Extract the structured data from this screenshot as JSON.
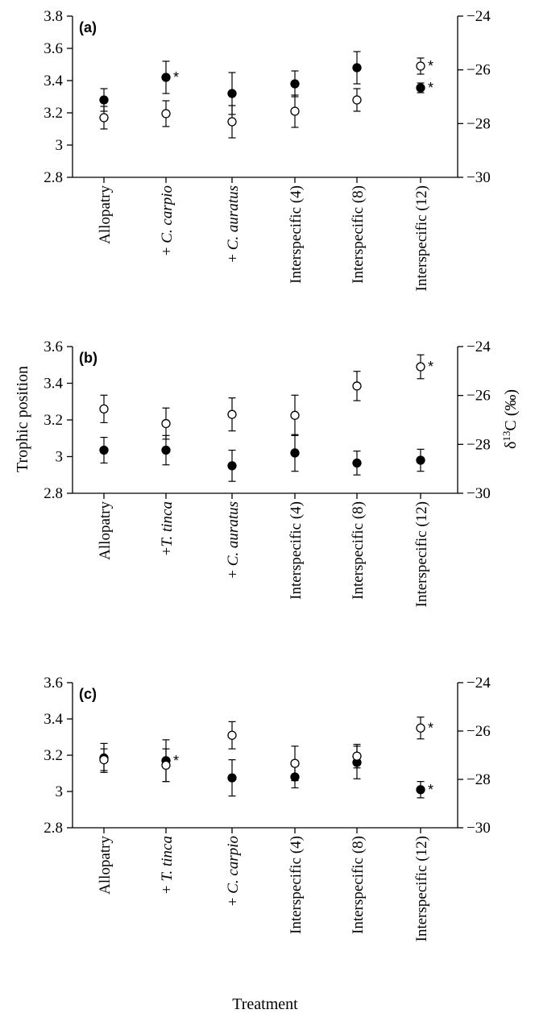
{
  "chart_data": [
    {
      "type": "scatter",
      "panel_label": "(a)",
      "categories": [
        "Allopatry",
        "+ C. carpio",
        "+ C. auratus",
        "Interspecific (4)",
        "Interspecific (8)",
        "Interspecific (12)"
      ],
      "category_parts": [
        [
          {
            "t": "Allopatry",
            "i": false
          }
        ],
        [
          {
            "t": "+ ",
            "i": false
          },
          {
            "t": "C. carpio",
            "i": true
          }
        ],
        [
          {
            "t": "+ ",
            "i": false
          },
          {
            "t": "C. auratus",
            "i": true
          }
        ],
        [
          {
            "t": "Interspecific (4)",
            "i": false
          }
        ],
        [
          {
            "t": "Interspecific (8)",
            "i": false
          }
        ],
        [
          {
            "t": "Interspecific (12)",
            "i": false
          }
        ]
      ],
      "ylim": [
        2.8,
        3.8
      ],
      "yticks": [
        2.8,
        3.0,
        3.2,
        3.4,
        3.6,
        3.8
      ],
      "ytick_labels": [
        "2.8",
        "3",
        "3.2",
        "3.4",
        "3.6",
        "3.8"
      ],
      "y2lim": [
        -30,
        -24
      ],
      "y2ticks": [
        -30,
        -28,
        -26,
        -24
      ],
      "y2tick_labels": [
        "−30",
        "−28",
        "−26",
        "−24"
      ],
      "filled": {
        "values": [
          3.28,
          3.42,
          3.32,
          3.38,
          3.48,
          3.355
        ],
        "err": [
          0.07,
          0.1,
          0.13,
          0.08,
          0.1,
          0.03
        ],
        "stars": [
          false,
          true,
          false,
          false,
          false,
          true
        ]
      },
      "open": {
        "values": [
          3.17,
          3.195,
          3.145,
          3.21,
          3.28,
          3.49
        ],
        "err": [
          0.07,
          0.08,
          0.1,
          0.1,
          0.07,
          0.05
        ],
        "stars": [
          false,
          false,
          false,
          false,
          false,
          true
        ]
      }
    },
    {
      "type": "scatter",
      "panel_label": "(b)",
      "categories": [
        "Allopatry",
        "+T. tinca",
        "+ C. auratus",
        "Interspecific (4)",
        "Interspecific (8)",
        "Interspecific (12)"
      ],
      "category_parts": [
        [
          {
            "t": "Allopatry",
            "i": false
          }
        ],
        [
          {
            "t": "+",
            "i": false
          },
          {
            "t": "T. tinca",
            "i": true
          }
        ],
        [
          {
            "t": "+ ",
            "i": false
          },
          {
            "t": "C. auratus",
            "i": true
          }
        ],
        [
          {
            "t": "Interspecific (4)",
            "i": false
          }
        ],
        [
          {
            "t": "Interspecific (8)",
            "i": false
          }
        ],
        [
          {
            "t": "Interspecific (12)",
            "i": false
          }
        ]
      ],
      "ylim": [
        2.8,
        3.6
      ],
      "yticks": [
        2.8,
        3.0,
        3.2,
        3.4,
        3.6
      ],
      "ytick_labels": [
        "2.8",
        "3",
        "3.2",
        "3.4",
        "3.6"
      ],
      "y2lim": [
        -30,
        -24
      ],
      "y2ticks": [
        -30,
        -28,
        -26,
        -24
      ],
      "y2tick_labels": [
        "−30",
        "−28",
        "−26",
        "−24"
      ],
      "filled": {
        "values": [
          3.035,
          3.035,
          2.95,
          3.02,
          2.965,
          2.98
        ],
        "err": [
          0.07,
          0.08,
          0.085,
          0.1,
          0.065,
          0.06
        ],
        "stars": [
          false,
          false,
          false,
          false,
          false,
          false
        ]
      },
      "open": {
        "values": [
          3.26,
          3.18,
          3.23,
          3.225,
          3.385,
          3.49
        ],
        "err": [
          0.075,
          0.085,
          0.09,
          0.11,
          0.08,
          0.065
        ],
        "stars": [
          false,
          false,
          false,
          false,
          false,
          true
        ]
      }
    },
    {
      "type": "scatter",
      "panel_label": "(c)",
      "categories": [
        "Allopatry",
        "+ T. tinca",
        "+ C. carpio",
        "Interspecific (4)",
        "Interspecific (8)",
        "Interspecific (12)"
      ],
      "category_parts": [
        [
          {
            "t": "Allopatry",
            "i": false
          }
        ],
        [
          {
            "t": "+ ",
            "i": false
          },
          {
            "t": "T. tinca",
            "i": true
          }
        ],
        [
          {
            "t": "+ ",
            "i": false
          },
          {
            "t": "C. carpio",
            "i": true
          }
        ],
        [
          {
            "t": "Interspecific (4)",
            "i": false
          }
        ],
        [
          {
            "t": "Interspecific (8)",
            "i": false
          }
        ],
        [
          {
            "t": "Interspecific (12)",
            "i": false
          }
        ]
      ],
      "ylim": [
        2.8,
        3.6
      ],
      "yticks": [
        2.8,
        3.0,
        3.2,
        3.4,
        3.6
      ],
      "ytick_labels": [
        "2.8",
        "3",
        "3.2",
        "3.4",
        "3.6"
      ],
      "y2lim": [
        -30,
        -24
      ],
      "y2ticks": [
        -30,
        -28,
        -26,
        -24
      ],
      "y2tick_labels": [
        "−30",
        "−28",
        "−26",
        "−24"
      ],
      "filled": {
        "values": [
          3.185,
          3.17,
          3.075,
          3.08,
          3.16,
          3.01
        ],
        "err": [
          0.08,
          0.115,
          0.1,
          0.06,
          0.09,
          0.045
        ],
        "stars": [
          false,
          true,
          false,
          false,
          false,
          true
        ]
      },
      "open": {
        "values": [
          3.175,
          3.145,
          3.31,
          3.155,
          3.195,
          3.35
        ],
        "err": [
          0.06,
          0.09,
          0.075,
          0.095,
          0.065,
          0.06
        ],
        "stars": [
          false,
          false,
          false,
          false,
          false,
          true
        ]
      }
    }
  ],
  "labels": {
    "ylabel": "Trophic position",
    "y2label_main": "δ",
    "y2label_sup": "13",
    "y2label_rest": "C (‰)",
    "xlabel": "Treatment",
    "star": "*"
  }
}
